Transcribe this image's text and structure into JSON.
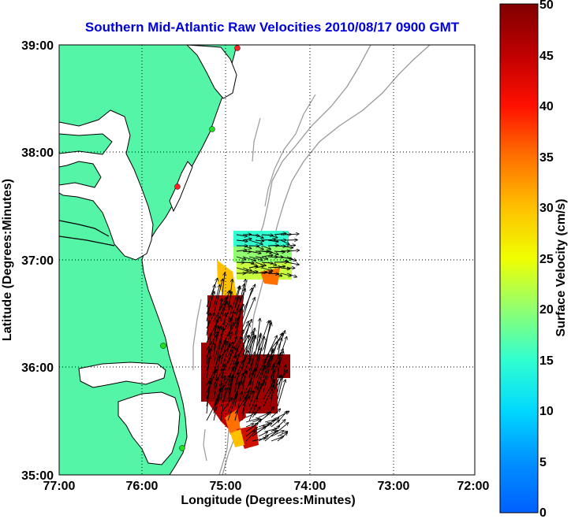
{
  "map": {
    "title": "Southern Mid-Atlantic Raw Velocities 2010/08/17 0900 GMT",
    "xlabel": "Longitude (Degrees:Minutes)",
    "ylabel": "Latitude (Degrees:Minutes)",
    "lon_ticks": [
      {
        "value": -77,
        "label": "77:00"
      },
      {
        "value": -76,
        "label": "76:00"
      },
      {
        "value": -75,
        "label": "75:00"
      },
      {
        "value": -74,
        "label": "74:00"
      },
      {
        "value": -73,
        "label": "73:00"
      },
      {
        "value": -72,
        "label": "72:00"
      }
    ],
    "lat_ticks": [
      {
        "value": 39,
        "label": "39:00"
      },
      {
        "value": 38,
        "label": "38:00"
      },
      {
        "value": 37,
        "label": "37:00"
      },
      {
        "value": 36,
        "label": "36:00"
      },
      {
        "value": 35,
        "label": "35:00"
      }
    ],
    "lon_range": [
      -77,
      -72
    ],
    "lat_range": [
      35,
      39
    ],
    "grid": "dotted",
    "land_color": "#55f5a8",
    "coast_color": "#000000",
    "bathymetry_color": "#999999",
    "title_color": "#0000dd",
    "stations": [
      {
        "lon": -74.86,
        "lat": 38.98,
        "status": "red"
      },
      {
        "lon": -75.09,
        "lat": 38.22,
        "status": "green"
      },
      {
        "lon": -75.5,
        "lat": 37.69,
        "status": "red"
      },
      {
        "lon": -75.73,
        "lat": 36.2,
        "status": "green"
      },
      {
        "lon": -75.52,
        "lat": 35.25,
        "status": "green"
      }
    ]
  },
  "colorbar": {
    "label": "Surface Velocity (cm/s)",
    "min": 0,
    "max": 50,
    "ticks": [
      "0",
      "5",
      "10",
      "15",
      "20",
      "25",
      "30",
      "35",
      "40",
      "45",
      "50"
    ]
  },
  "chart_data": {
    "type": "heatmap",
    "units": "cm/s",
    "velocity_fields": [
      {
        "region": "north cluster near 37:00N",
        "lon_range": [
          -74.9,
          -74.27
        ],
        "lat_range": [
          36.78,
          37.22
        ],
        "speed_cm_s": [
          8,
          30
        ]
      },
      {
        "region": "south cluster 35:15N to 36:30N",
        "lon_range": [
          -75.3,
          -74.15
        ],
        "lat_range": [
          35.22,
          36.48
        ],
        "speed_cm_s": [
          35,
          50
        ]
      }
    ]
  }
}
